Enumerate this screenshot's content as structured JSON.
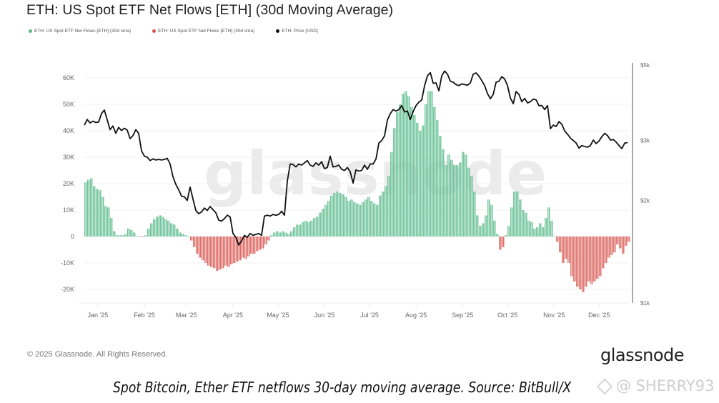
{
  "chart_data": {
    "type": "bar",
    "title": "ETH: US Spot ETF Net Flows [ETH] (30d Moving Average)",
    "legend": [
      {
        "label": "ETH: US Spot ETF Net Flows [ETH] (30d sma)",
        "color": "#5cb88a"
      },
      {
        "label": "ETH: US Spot ETF Net Flows [ETH] (30d sma)",
        "color": "#d9534f"
      },
      {
        "label": "ETH: Price [USD]",
        "color": "#111111"
      }
    ],
    "legend_position": "top-left",
    "xlabel": "",
    "ylabel": "",
    "x_start_date": "2024-12-23",
    "x_step_days": 1.905,
    "x_ticks": [
      "Jan '25",
      "Feb '25",
      "Mar '25",
      "Apr '25",
      "May '25",
      "Jun '25",
      "Jul '25",
      "Aug '25",
      "Sep '25",
      "Oct '25",
      "Nov '25",
      "Dec '25"
    ],
    "x_tick_dates": [
      "2025-01-01",
      "2025-02-01",
      "2025-03-01",
      "2025-04-01",
      "2025-05-01",
      "2025-06-01",
      "2025-07-01",
      "2025-08-01",
      "2025-09-01",
      "2025-10-01",
      "2025-11-01",
      "2025-12-01"
    ],
    "y_left": {
      "ticks": [
        "60K",
        "50K",
        "40K",
        "30K",
        "20K",
        "10K",
        "0",
        "-10K",
        "-20K"
      ],
      "tick_values": [
        60000,
        50000,
        40000,
        30000,
        20000,
        10000,
        0,
        -10000,
        -20000
      ],
      "range": [
        -26000,
        66000
      ]
    },
    "y_right": {
      "scale": "log",
      "ticks": [
        "$5k",
        "$3k",
        "$2k",
        "$1k"
      ],
      "tick_values": [
        5000,
        3000,
        2000,
        1000
      ],
      "range": [
        1000,
        5000
      ]
    },
    "grid": true,
    "positive_color": "#6fc49a",
    "negative_color": "#dd6b66",
    "price_color": "#111111",
    "series": [
      {
        "name": "ETH: US Spot ETF Net Flows [ETH] (30d sma)",
        "axis": "left",
        "unit": "ETH",
        "values": [
          20500,
          21500,
          22000,
          19000,
          18000,
          17500,
          15000,
          11500,
          11000,
          7000,
          2000,
          500,
          500,
          500,
          1000,
          3000,
          2500,
          1500,
          0,
          -200,
          -200,
          500,
          3000,
          5000,
          6500,
          7500,
          8000,
          7500,
          6500,
          6000,
          5000,
          4500,
          3000,
          1500,
          1000,
          500,
          0,
          -1500,
          -4000,
          -6500,
          -8000,
          -9000,
          -10000,
          -11000,
          -11500,
          -12000,
          -13000,
          -12500,
          -12000,
          -11000,
          -11500,
          -10500,
          -10000,
          -9500,
          -9000,
          -8000,
          -8500,
          -7500,
          -6500,
          -6500,
          -5500,
          -5000,
          -4500,
          -3000,
          -1500,
          500,
          1500,
          2000,
          1500,
          2000,
          1500,
          1000,
          2000,
          3500,
          4500,
          4500,
          5500,
          6000,
          5500,
          6000,
          7000,
          7500,
          9000,
          10500,
          12000,
          13500,
          15500,
          16500,
          17000,
          16500,
          16000,
          15000,
          13500,
          14000,
          13000,
          12500,
          12000,
          13000,
          14000,
          15000,
          13500,
          12500,
          12000,
          15500,
          17000,
          19000,
          23000,
          32000,
          41000,
          47000,
          50000,
          54000,
          55000,
          53000,
          49000,
          46000,
          43000,
          40000,
          42000,
          50000,
          55000,
          55000,
          49000,
          44000,
          38000,
          33000,
          27000,
          31000,
          29000,
          27000,
          27000,
          28000,
          32000,
          31000,
          26000,
          23000,
          17000,
          8000,
          4000,
          5000,
          8000,
          14000,
          12000,
          6000,
          1000,
          -5000,
          -4000,
          500,
          4000,
          11000,
          17000,
          17000,
          14000,
          10000,
          9000,
          6000,
          5500,
          3000,
          3500,
          5000,
          3500,
          7000,
          11000,
          6000,
          0,
          -2000,
          -6000,
          -10000,
          -8500,
          -10000,
          -15000,
          -17000,
          -19000,
          -20000,
          -21000,
          -19000,
          -17000,
          -18000,
          -17000,
          -16000,
          -15000,
          -12000,
          -10000,
          -8000,
          -7000,
          -6000,
          -3000,
          -4500,
          -6500,
          -3500,
          -2000
        ]
      },
      {
        "name": "ETH: Price [USD]",
        "axis": "right",
        "unit": "USD",
        "values": [
          3330,
          3460,
          3380,
          3420,
          3390,
          3400,
          3600,
          3690,
          3450,
          3230,
          3310,
          3150,
          3280,
          3210,
          3260,
          3220,
          3040,
          3100,
          3230,
          3150,
          2800,
          2700,
          2680,
          2620,
          2650,
          2630,
          2640,
          2630,
          2640,
          2660,
          2560,
          2350,
          2230,
          2150,
          2060,
          2050,
          2000,
          2190,
          2020,
          1870,
          1830,
          1850,
          1900,
          1870,
          1920,
          1880,
          1840,
          1750,
          1740,
          1770,
          1810,
          1790,
          1600,
          1560,
          1480,
          1520,
          1580,
          1560,
          1600,
          1580,
          1590,
          1600,
          1580,
          1800,
          1810,
          1800,
          1820,
          1810,
          1820,
          1860,
          1810,
          2280,
          2560,
          2550,
          2510,
          2560,
          2540,
          2580,
          2620,
          2540,
          2520,
          2580,
          2540,
          2600,
          2480,
          2500,
          2700,
          2510,
          2520,
          2540,
          2470,
          2450,
          2500,
          2430,
          2250,
          2460,
          2440,
          2450,
          2540,
          2470,
          2560,
          2560,
          2650,
          2950,
          3000,
          3100,
          3450,
          3600,
          3700,
          3660,
          3700,
          3800,
          3640,
          3660,
          3460,
          3650,
          3800,
          3890,
          3950,
          4350,
          4650,
          4750,
          4420,
          4430,
          4200,
          4650,
          4800,
          4700,
          4480,
          4450,
          4380,
          4350,
          4400,
          4380,
          4360,
          4430,
          4700,
          4740,
          4640,
          4500,
          4350,
          4120,
          3980,
          4100,
          4450,
          4480,
          4620,
          4550,
          4350,
          4000,
          3850,
          4180,
          4100,
          3900,
          3990,
          3870,
          3900,
          3970,
          3950,
          3800,
          3800,
          3700,
          3800,
          3250,
          3330,
          3300,
          3410,
          3350,
          3200,
          3130,
          3050,
          3000,
          2950,
          2850,
          2900,
          2880,
          2870,
          2900,
          3010,
          2940,
          2990,
          3080,
          3150,
          3100,
          3010,
          3020,
          2970,
          2900,
          2840,
          2950,
          2960
        ]
      }
    ],
    "watermark": "glassnode"
  },
  "footer": {
    "copyright": "© 2025 Glassnode. All Rights Reserved.",
    "brand": "glassnode"
  },
  "caption": {
    "text": "Spot Bitcoin, Ether ETF netflows 30-day moving average. Source: BitBull/X",
    "credit": "@ SHERRY93"
  }
}
